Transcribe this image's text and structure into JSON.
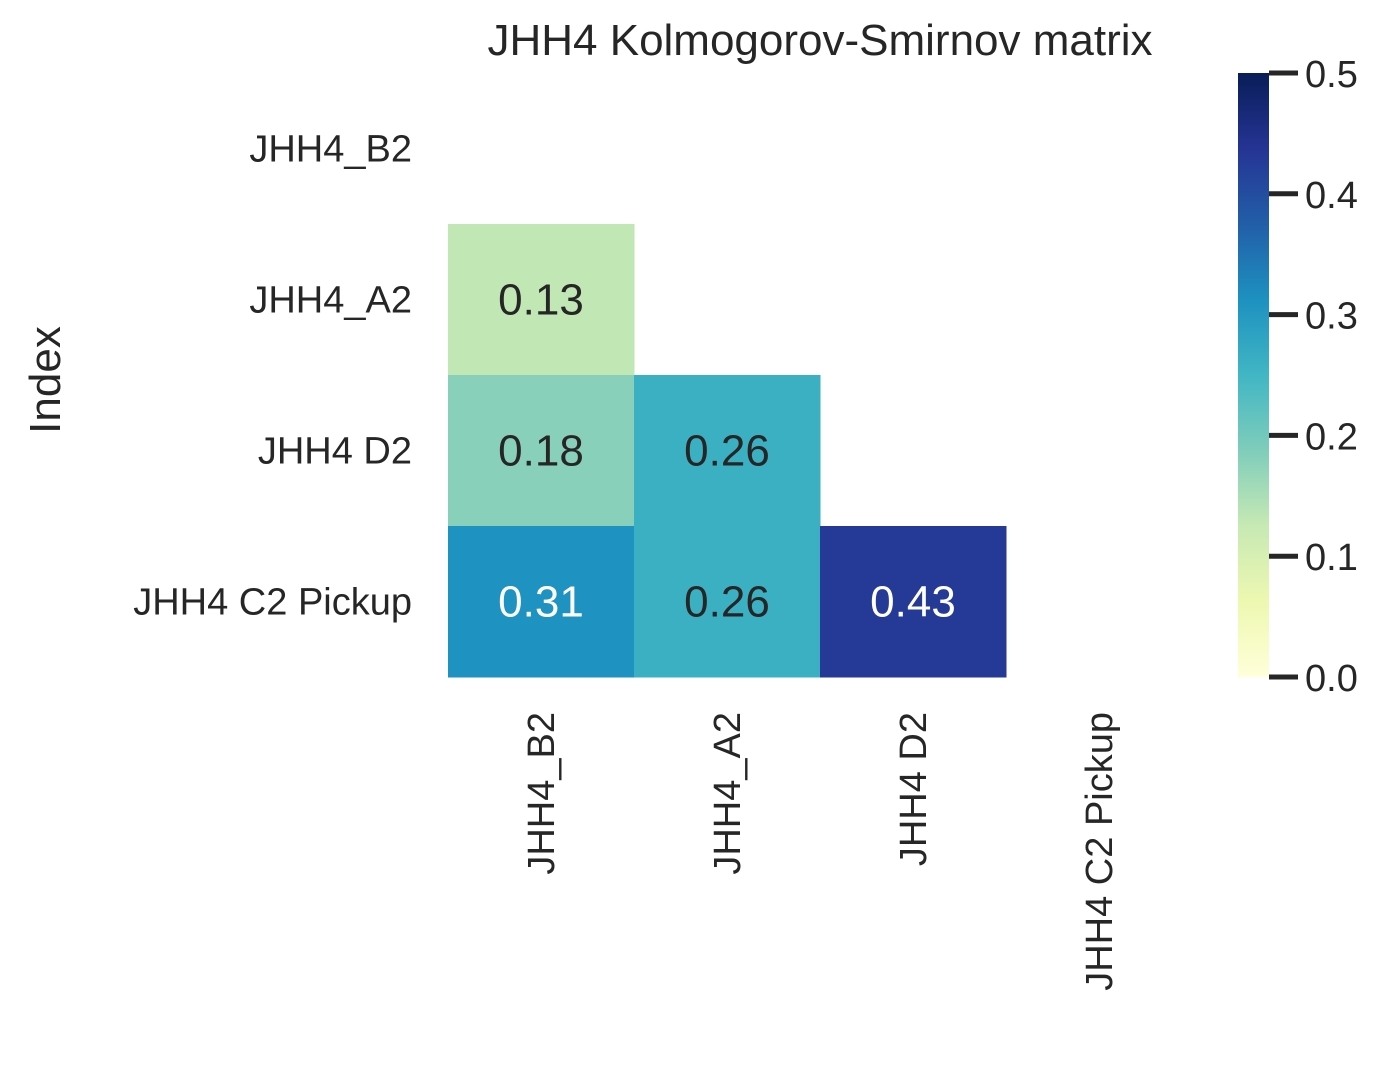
{
  "chart_data": {
    "type": "heatmap",
    "title": "JHH4 Kolmogorov-Smirnov matrix",
    "ylabel": "Index",
    "xlabel": "",
    "rows": [
      "JHH4_B2",
      "JHH4_A2",
      "JHH4 D2",
      "JHH4 C2 Pickup"
    ],
    "columns": [
      "JHH4_B2",
      "JHH4_A2",
      "JHH4 D2",
      "JHH4 C2 Pickup"
    ],
    "values": [
      [
        null,
        null,
        null,
        null
      ],
      [
        0.13,
        null,
        null,
        null
      ],
      [
        0.18,
        0.26,
        null,
        null
      ],
      [
        0.31,
        0.26,
        0.43,
        null
      ]
    ],
    "mask": "upper triangle including diagonal",
    "colorbar": {
      "colormap": "YlGnBu",
      "range": [
        0.0,
        0.5
      ],
      "ticks": [
        0.0,
        0.1,
        0.2,
        0.3,
        0.4,
        0.5
      ],
      "tick_labels": [
        "0.0",
        "0.1",
        "0.2",
        "0.3",
        "0.4",
        "0.5"
      ]
    },
    "grid": false
  }
}
